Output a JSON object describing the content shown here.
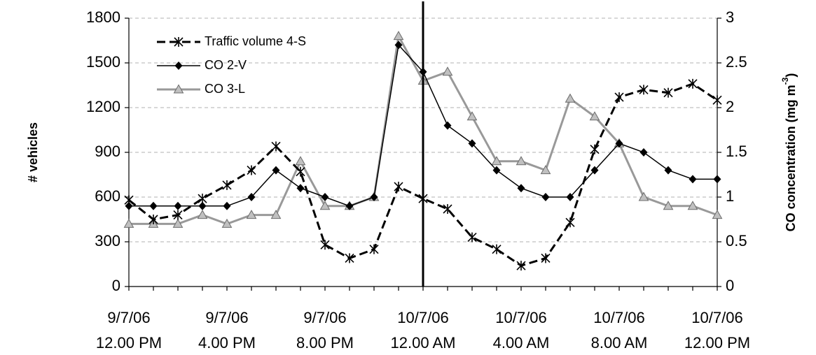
{
  "chart_data": {
    "type": "line",
    "ylabel": "# vehicles",
    "y2label": "CO concentration (mg m⁻³)",
    "y2label_parts": {
      "main": "CO concentration (mg m",
      "sup": "-3",
      "end": ")"
    },
    "ylim": [
      0,
      1800
    ],
    "y2lim": [
      0,
      3
    ],
    "yticks": [
      0,
      300,
      600,
      900,
      1200,
      1500,
      1800
    ],
    "y2ticks": [
      "0",
      "0.5",
      "1",
      "1.5",
      "2",
      "2.5",
      "3"
    ],
    "xlim": [
      0,
      24
    ],
    "x": [
      0,
      1,
      2,
      3,
      4,
      5,
      6,
      7,
      8,
      9,
      10,
      11,
      12,
      13,
      14,
      15,
      16,
      17,
      18,
      19,
      20,
      21,
      22,
      23,
      24
    ],
    "x_tick_labels": [
      {
        "date": "9/7/06",
        "time": "12.00 PM"
      },
      {
        "date": "9/7/06",
        "time": "4.00 PM"
      },
      {
        "date": "9/7/06",
        "time": "8.00 PM"
      },
      {
        "date": "10/7/06",
        "time": "12.00 AM"
      },
      {
        "date": "10/7/06",
        "time": "4.00 AM"
      },
      {
        "date": "10/7/06",
        "time": "8.00 AM"
      },
      {
        "date": "10/7/06",
        "time": "12.00 PM"
      }
    ],
    "grid": true,
    "legend_position": "top-left",
    "series": [
      {
        "name": "Traffic volume 4-S",
        "axis": "left",
        "color": "#000000",
        "marker": "star",
        "values": [
          580,
          450,
          480,
          590,
          680,
          780,
          940,
          770,
          280,
          190,
          250,
          670,
          590,
          520,
          330,
          250,
          140,
          190,
          430,
          920,
          1270,
          1320,
          1300,
          1360,
          1250
        ]
      },
      {
        "name": "CO 2-V",
        "axis": "right",
        "color": "#000000",
        "marker": "diamond",
        "values": [
          0.9,
          0.9,
          0.9,
          0.9,
          0.9,
          1.0,
          1.3,
          1.1,
          1.0,
          0.9,
          1.0,
          2.7,
          2.4,
          1.8,
          1.6,
          1.3,
          1.1,
          1.0,
          1.0,
          1.3,
          1.6,
          1.5,
          1.3,
          1.2,
          1.2
        ]
      },
      {
        "name": "CO 3-L",
        "axis": "right",
        "color": "#999999",
        "marker": "triangle",
        "values": [
          0.7,
          0.7,
          0.7,
          0.8,
          0.7,
          0.8,
          0.8,
          1.4,
          0.9,
          0.9,
          1.0,
          2.8,
          2.3,
          2.4,
          1.9,
          1.4,
          1.4,
          1.3,
          2.1,
          1.9,
          1.6,
          1.0,
          0.9,
          0.9,
          0.8
        ]
      }
    ],
    "vertical_line_x": 12
  }
}
